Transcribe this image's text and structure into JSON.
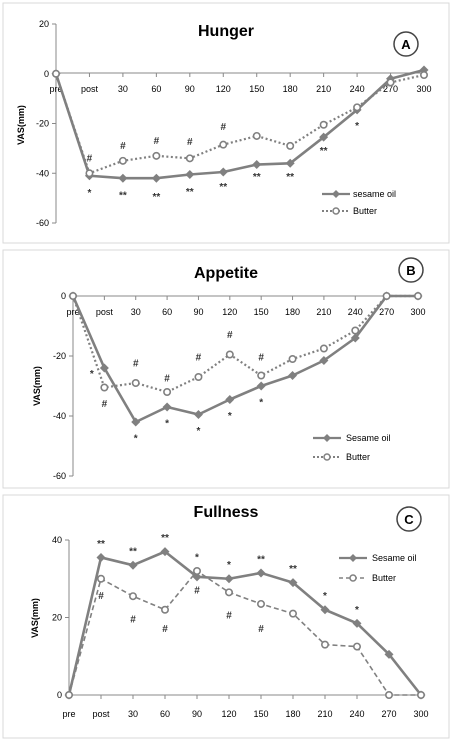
{
  "chart_data": [
    {
      "type": "line",
      "title": "Hunger",
      "panel_label": "A",
      "ylabel": "VAS(mm)",
      "ylim": [
        -60,
        20
      ],
      "yticks": [
        -60,
        -40,
        -20,
        0,
        20
      ],
      "categories": [
        "pre",
        "post",
        "30",
        "60",
        "90",
        "120",
        "150",
        "180",
        "210",
        "240",
        "270",
        "300"
      ],
      "series": [
        {
          "name": "sesame oil",
          "style": "solid-diamond",
          "color": "#808080",
          "values": [
            0,
            -41,
            -42,
            -42,
            -40.5,
            -39.5,
            -36.5,
            -36,
            -25.5,
            -14.5,
            -2,
            1.5
          ]
        },
        {
          "name": "Butter",
          "style": "dotted-circle",
          "color": "#808080",
          "values": [
            0,
            -40,
            -35,
            -33,
            -34,
            -28.5,
            -25,
            -29,
            -20.5,
            -13.5,
            -3.5,
            -0.5
          ]
        }
      ],
      "annotations": [
        {
          "text": "#",
          "x": "post",
          "y": -34
        },
        {
          "text": "#",
          "x": "30",
          "y": -29
        },
        {
          "text": "#",
          "x": "60",
          "y": -27
        },
        {
          "text": "#",
          "x": "90",
          "y": -27.5
        },
        {
          "text": "#",
          "x": "120",
          "y": -21.5
        },
        {
          "text": "*",
          "x": "post",
          "y": -48
        },
        {
          "text": "**",
          "x": "30",
          "y": -49
        },
        {
          "text": "**",
          "x": "60",
          "y": -49.5
        },
        {
          "text": "**",
          "x": "90",
          "y": -47.5
        },
        {
          "text": "**",
          "x": "120",
          "y": -45.5
        },
        {
          "text": "**",
          "x": "150",
          "y": -41.5
        },
        {
          "text": "**",
          "x": "180",
          "y": -41.5
        },
        {
          "text": "**",
          "x": "210",
          "y": -31
        },
        {
          "text": "*",
          "x": "240",
          "y": -21
        }
      ],
      "legend_position": "bottom-right",
      "grid": false
    },
    {
      "type": "line",
      "title": "Appetite",
      "panel_label": "B",
      "ylabel": "VAS(mm)",
      "ylim": [
        -60,
        0
      ],
      "yticks": [
        -60,
        -40,
        -20,
        0
      ],
      "categories": [
        "pre",
        "post",
        "30",
        "60",
        "90",
        "120",
        "150",
        "180",
        "210",
        "240",
        "270",
        "300"
      ],
      "series": [
        {
          "name": "Sesame oil",
          "style": "solid-diamond",
          "color": "#808080",
          "values": [
            0,
            -24,
            -42,
            -37,
            -39.5,
            -34.5,
            -30,
            -26.5,
            -21.5,
            -14,
            0,
            0
          ]
        },
        {
          "name": "Butter",
          "style": "dotted-circle",
          "color": "#808080",
          "values": [
            0,
            -30.5,
            -29,
            -32,
            -27,
            -19.5,
            -26.5,
            -21,
            -17.5,
            -11.5,
            0,
            0
          ]
        }
      ],
      "annotations": [
        {
          "text": "*",
          "x": "pre",
          "y": -26,
          "dx": 0.6
        },
        {
          "text": "#",
          "x": "post",
          "y": -36
        },
        {
          "text": "#",
          "x": "30",
          "y": -22.5
        },
        {
          "text": "#",
          "x": "60",
          "y": -27.5
        },
        {
          "text": "#",
          "x": "90",
          "y": -20.5
        },
        {
          "text": "#",
          "x": "120",
          "y": -13
        },
        {
          "text": "#",
          "x": "150",
          "y": -20.5
        },
        {
          "text": "*",
          "x": "30",
          "y": -47.5
        },
        {
          "text": "*",
          "x": "60",
          "y": -42.5
        },
        {
          "text": "*",
          "x": "90",
          "y": -45
        },
        {
          "text": "*",
          "x": "120",
          "y": -40
        },
        {
          "text": "*",
          "x": "150",
          "y": -35.5
        }
      ],
      "legend_position": "bottom-right",
      "grid": false
    },
    {
      "type": "line",
      "title": "Fullness",
      "panel_label": "C",
      "ylabel": "VAS(mm)",
      "ylim": [
        0,
        40
      ],
      "yticks": [
        0,
        20,
        40
      ],
      "categories": [
        "pre",
        "post",
        "30",
        "60",
        "90",
        "120",
        "150",
        "180",
        "210",
        "240",
        "270",
        "300"
      ],
      "series": [
        {
          "name": "Sesame oil",
          "style": "solid-diamond",
          "color": "#808080",
          "values": [
            0,
            35.5,
            33.5,
            37,
            30.5,
            30,
            31.5,
            29,
            22,
            18.5,
            10.5,
            0
          ]
        },
        {
          "name": "Butter",
          "style": "dashed-circle",
          "color": "#808080",
          "values": [
            0,
            30,
            25.5,
            22,
            32,
            26.5,
            23.5,
            21,
            13,
            12.5,
            0,
            0
          ]
        }
      ],
      "annotations": [
        {
          "text": "**",
          "x": "post",
          "y": 39
        },
        {
          "text": "**",
          "x": "30",
          "y": 37
        },
        {
          "text": "**",
          "x": "60",
          "y": 40.5
        },
        {
          "text": "*",
          "x": "90",
          "y": 35.5
        },
        {
          "text": "*",
          "x": "120",
          "y": 33.5
        },
        {
          "text": "**",
          "x": "150",
          "y": 35
        },
        {
          "text": "**",
          "x": "180",
          "y": 32.5
        },
        {
          "text": "*",
          "x": "210",
          "y": 25.5
        },
        {
          "text": "*",
          "x": "240",
          "y": 22
        },
        {
          "text": "#",
          "x": "post",
          "y": 25.5
        },
        {
          "text": "#",
          "x": "30",
          "y": 19.5
        },
        {
          "text": "#",
          "x": "60",
          "y": 17
        },
        {
          "text": "#",
          "x": "90",
          "y": 27
        },
        {
          "text": "#",
          "x": "120",
          "y": 20.5
        },
        {
          "text": "#",
          "x": "150",
          "y": 17
        }
      ],
      "legend_position": "top-right",
      "grid": false
    }
  ]
}
